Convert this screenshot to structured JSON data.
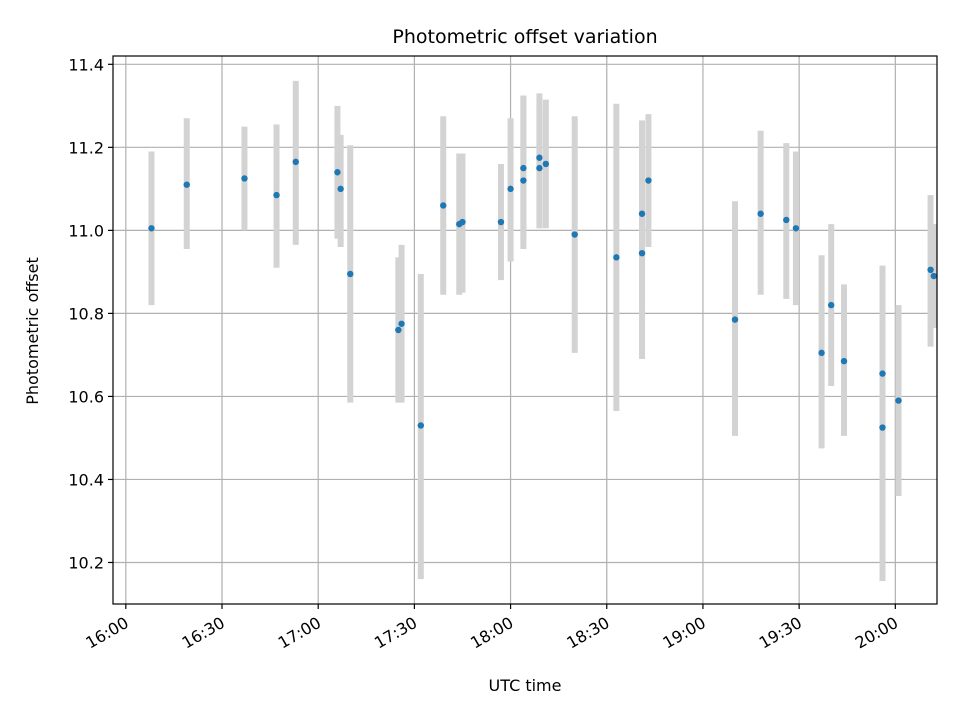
{
  "chart_data": {
    "type": "scatter",
    "title": "Photometric offset variation",
    "xlabel": "UTC time",
    "ylabel": "Photometric offset",
    "x_unit": "UTC time (HH:MM)",
    "xlim": [
      "15:56",
      "20:13"
    ],
    "ylim": [
      10.1,
      11.42
    ],
    "xticks": [
      "16:00",
      "16:30",
      "17:00",
      "17:30",
      "18:00",
      "18:30",
      "19:00",
      "19:30",
      "20:00"
    ],
    "yticks": [
      10.2,
      10.4,
      10.6,
      10.8,
      11.0,
      11.2,
      11.4
    ],
    "grid": true,
    "colors": {
      "points": "#1f77b4",
      "errorbars": "#d3d3d3",
      "grid": "#b0b0b0"
    },
    "points": [
      {
        "t": "16:08",
        "y": 11.005,
        "lo": 10.82,
        "hi": 11.19
      },
      {
        "t": "16:19",
        "y": 11.11,
        "lo": 10.955,
        "hi": 11.27
      },
      {
        "t": "16:37",
        "y": 11.125,
        "lo": 11.0,
        "hi": 11.25
      },
      {
        "t": "16:47",
        "y": 11.085,
        "lo": 10.91,
        "hi": 11.255
      },
      {
        "t": "16:53",
        "y": 11.165,
        "lo": 10.965,
        "hi": 11.36
      },
      {
        "t": "17:06",
        "y": 11.14,
        "lo": 10.98,
        "hi": 11.3
      },
      {
        "t": "17:07",
        "y": 11.1,
        "lo": 10.96,
        "hi": 11.23
      },
      {
        "t": "17:10",
        "y": 10.895,
        "lo": 10.585,
        "hi": 11.205
      },
      {
        "t": "17:25",
        "y": 10.76,
        "lo": 10.585,
        "hi": 10.935
      },
      {
        "t": "17:26",
        "y": 10.775,
        "lo": 10.585,
        "hi": 10.965
      },
      {
        "t": "17:32",
        "y": 10.53,
        "lo": 10.16,
        "hi": 10.895
      },
      {
        "t": "17:39",
        "y": 11.06,
        "lo": 10.845,
        "hi": 11.275
      },
      {
        "t": "17:44",
        "y": 11.015,
        "lo": 10.845,
        "hi": 11.185
      },
      {
        "t": "17:45",
        "y": 11.02,
        "lo": 10.85,
        "hi": 11.185
      },
      {
        "t": "17:57",
        "y": 11.02,
        "lo": 10.88,
        "hi": 11.16
      },
      {
        "t": "18:00",
        "y": 11.1,
        "lo": 10.925,
        "hi": 11.27
      },
      {
        "t": "18:04",
        "y": 11.12,
        "lo": 10.955,
        "hi": 11.325
      },
      {
        "t": "18:04",
        "y": 11.15,
        "lo": 10.975,
        "hi": 11.325
      },
      {
        "t": "18:09",
        "y": 11.175,
        "lo": 11.005,
        "hi": 11.33
      },
      {
        "t": "18:09",
        "y": 11.15,
        "lo": 11.005,
        "hi": 11.3
      },
      {
        "t": "18:11",
        "y": 11.16,
        "lo": 11.005,
        "hi": 11.315
      },
      {
        "t": "18:20",
        "y": 10.99,
        "lo": 10.705,
        "hi": 11.275
      },
      {
        "t": "18:33",
        "y": 10.935,
        "lo": 10.565,
        "hi": 11.305
      },
      {
        "t": "18:41",
        "y": 10.945,
        "lo": 10.69,
        "hi": 11.19
      },
      {
        "t": "18:41",
        "y": 11.04,
        "lo": 10.82,
        "hi": 11.265
      },
      {
        "t": "18:43",
        "y": 11.12,
        "lo": 10.96,
        "hi": 11.28
      },
      {
        "t": "19:10",
        "y": 10.785,
        "lo": 10.505,
        "hi": 11.07
      },
      {
        "t": "19:18",
        "y": 11.04,
        "lo": 10.845,
        "hi": 11.24
      },
      {
        "t": "19:26",
        "y": 11.025,
        "lo": 10.835,
        "hi": 11.21
      },
      {
        "t": "19:29",
        "y": 11.005,
        "lo": 10.82,
        "hi": 11.19
      },
      {
        "t": "19:37",
        "y": 10.705,
        "lo": 10.475,
        "hi": 10.94
      },
      {
        "t": "19:40",
        "y": 10.82,
        "lo": 10.625,
        "hi": 11.015
      },
      {
        "t": "19:44",
        "y": 10.685,
        "lo": 10.505,
        "hi": 10.87
      },
      {
        "t": "19:56",
        "y": 10.655,
        "lo": 10.395,
        "hi": 10.915
      },
      {
        "t": "19:56",
        "y": 10.525,
        "lo": 10.155,
        "hi": 10.895
      },
      {
        "t": "20:01",
        "y": 10.59,
        "lo": 10.36,
        "hi": 10.82
      },
      {
        "t": "20:11",
        "y": 10.905,
        "lo": 10.72,
        "hi": 11.085
      },
      {
        "t": "20:12",
        "y": 10.89,
        "lo": 10.765,
        "hi": 11.015
      }
    ]
  }
}
